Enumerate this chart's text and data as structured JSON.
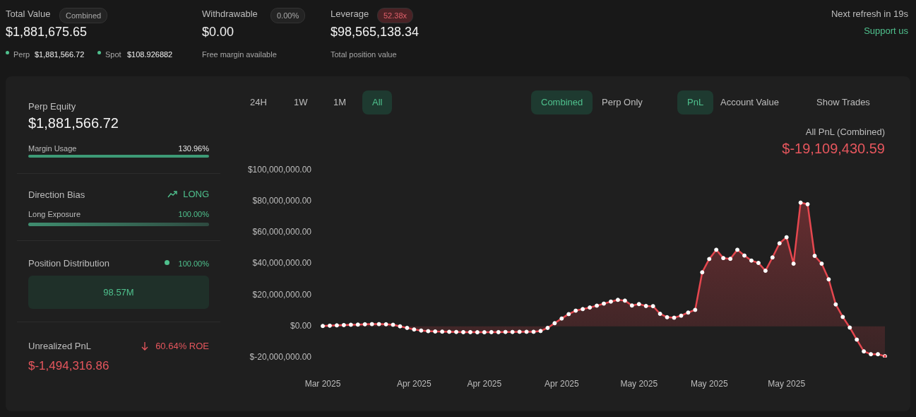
{
  "chart_data": [
    {
      "type": "other",
      "annotations": [
        "Total Value",
        "Combined",
        "$1,881,675.65",
        "Perp",
        "$1,881,566.72",
        "Spot",
        "$108.926882",
        "Withdrawable",
        "0.00%",
        "$0.00",
        "Free margin available",
        "Leverage",
        "52.38x",
        "$98,565,138.34",
        "Total position value",
        "Next refresh in 19s",
        "Support us",
        "Perp Equity",
        "$1,881,566.72",
        "Margin Usage",
        "130.96%",
        "Direction Bias",
        "LONG",
        "Long Exposure",
        "100.00%",
        "Position Distribution",
        "100.00%",
        "98.57M",
        "Unrealized PnL",
        "60.64% ROE",
        "$-1,494,316.86"
      ]
    },
    {
      "type": "area",
      "title": "All PnL (Combined)",
      "subtitle": "$-19,109,430.59",
      "annotations": [
        "24H",
        "1W",
        "1M",
        "All",
        "Combined",
        "Perp Only",
        "PnL",
        "Account Value",
        "Show Trades"
      ],
      "categories": [
        "Mar 2025",
        null,
        null,
        null,
        null,
        null,
        null,
        null,
        null,
        null,
        null,
        null,
        null,
        "Apr 2025",
        null,
        null,
        null,
        null,
        null,
        null,
        null,
        null,
        null,
        "Apr 2025",
        null,
        null,
        null,
        null,
        null,
        null,
        null,
        null,
        null,
        null,
        "Apr 2025",
        null,
        null,
        null,
        null,
        null,
        null,
        null,
        null,
        null,
        null,
        "May 2025",
        null,
        null,
        null,
        null,
        null,
        null,
        null,
        null,
        null,
        "May 2025",
        null,
        null,
        null,
        null,
        null,
        null,
        null,
        null,
        null,
        null,
        "May 2025",
        null,
        null,
        null,
        null,
        null,
        null,
        null,
        null,
        null,
        null,
        null,
        null,
        null,
        null
      ],
      "series": [
        {
          "color": "#e5474f",
          "values": [
            200000,
            400000,
            600000,
            800000,
            1000000,
            1100000,
            1300000,
            1400000,
            1400000,
            1300000,
            1000000,
            0,
            -1000000,
            -2000000,
            -2700000,
            -3100000,
            -3300000,
            -3400000,
            -3500000,
            -3600000,
            -3700000,
            -3700000,
            -3800000,
            -3800000,
            -3700000,
            -3700000,
            -3600000,
            -3600000,
            -3500000,
            -3500000,
            -3500000,
            -3000000,
            -1000000,
            2000000,
            5000000,
            7800000,
            10000000,
            11000000,
            12000000,
            13200000,
            14500000,
            15800000,
            16900000,
            16400000,
            13300000,
            14200000,
            13000000,
            12900000,
            8000000,
            5800000,
            5500000,
            6800000,
            8800000,
            10500000,
            34500000,
            43000000,
            48900000,
            43600000,
            43100000,
            48900000,
            45200000,
            42000000,
            40500000,
            35500000,
            44000000,
            53000000,
            56900000,
            40000000,
            79000000,
            78000000,
            45000000,
            40000000,
            30000000,
            14000000,
            6000000,
            -800000,
            -8500000,
            -16000000,
            -17800000,
            -17800000,
            -19100000
          ]
        }
      ],
      "ylim": [
        -20000000,
        100000000
      ],
      "yticks": [
        {
          "value": -20000000,
          "label": "$-20,000,000.00"
        },
        {
          "value": 0,
          "label": "$0.00"
        },
        {
          "value": 20000000,
          "label": "$20,000,000.00"
        },
        {
          "value": 40000000,
          "label": "$40,000,000.00"
        },
        {
          "value": 60000000,
          "label": "$60,000,000.00"
        },
        {
          "value": 80000000,
          "label": "$80,000,000.00"
        },
        {
          "value": 100000000,
          "label": "$100,000,000.00"
        }
      ],
      "marker": "circle",
      "line_style": "solid",
      "legend": false
    }
  ]
}
